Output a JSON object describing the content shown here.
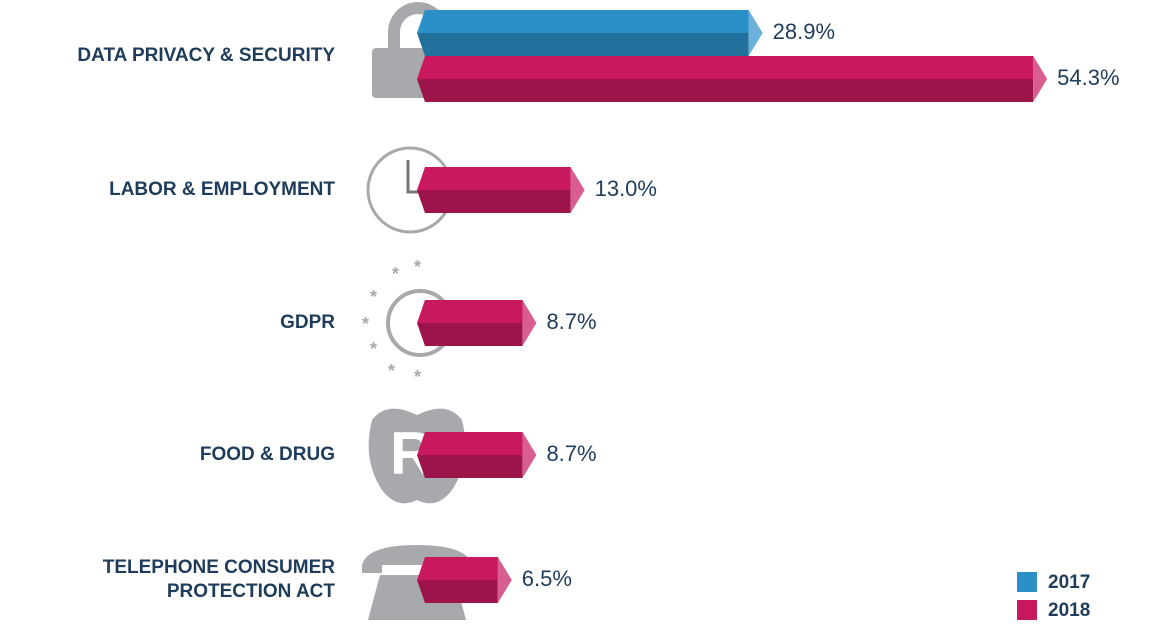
{
  "chart_data": {
    "type": "bar3d",
    "categories": [
      "DATA PRIVACY & SECURITY",
      "LABOR & EMPLOYMENT",
      "GDPR",
      "FOOD & DRUG",
      "TELEPHONE CONSUMER PROTECTION ACT"
    ],
    "series": [
      {
        "name": "2017",
        "color": "#2b8fc8",
        "values": [
          28.9,
          null,
          null,
          null,
          null
        ],
        "value_labels": [
          "28.9%",
          null,
          null,
          null,
          null
        ]
      },
      {
        "name": "2018",
        "color": "#c8195f",
        "values": [
          54.3,
          13.0,
          8.7,
          8.7,
          6.5
        ],
        "value_labels": [
          "54.3%",
          "13.0%",
          "8.7%",
          "8.7%",
          "6.5%"
        ]
      }
    ]
  }
}
